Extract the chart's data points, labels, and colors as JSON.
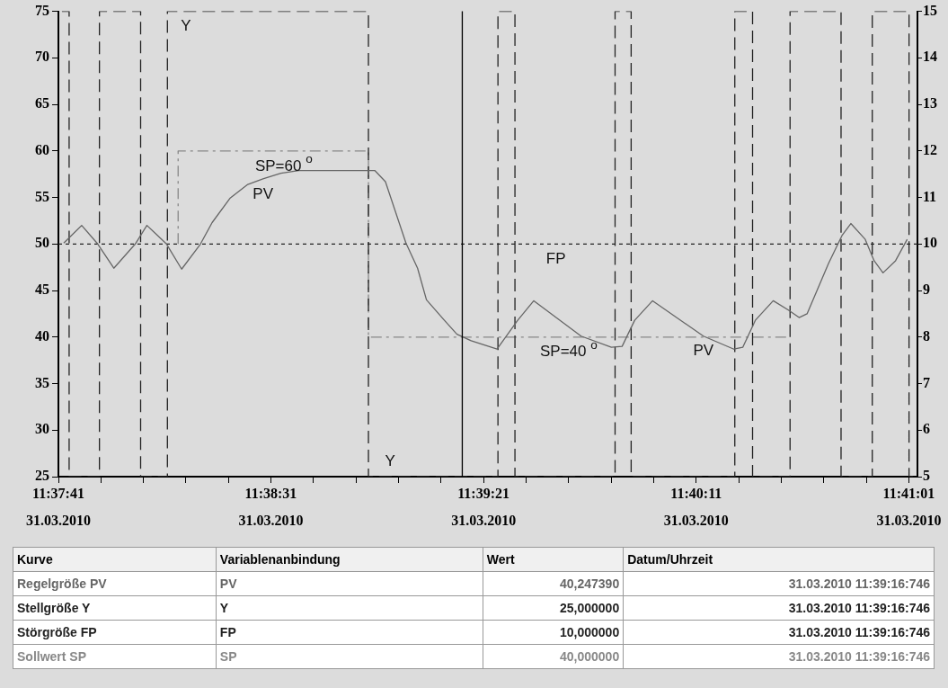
{
  "chart_data": {
    "type": "line",
    "xlim": [
      11.62806,
      11.68417
    ],
    "xticks": [
      {
        "value": 11.62806,
        "label": "11:37:41"
      },
      {
        "value": 11.63083,
        "label": null
      },
      {
        "value": 11.63361,
        "label": null
      },
      {
        "value": 11.63639,
        "label": null
      },
      {
        "value": 11.63917,
        "label": null
      },
      {
        "value": 11.64194,
        "label": "11:38:31"
      },
      {
        "value": 11.64472,
        "label": null
      },
      {
        "value": 11.6475,
        "label": null
      },
      {
        "value": 11.65028,
        "label": null
      },
      {
        "value": 11.65306,
        "label": null
      },
      {
        "value": 11.65583,
        "label": "11:39:21"
      },
      {
        "value": 11.65861,
        "label": null
      },
      {
        "value": 11.66139,
        "label": null
      },
      {
        "value": 11.66417,
        "label": null
      },
      {
        "value": 11.66694,
        "label": null
      },
      {
        "value": 11.66972,
        "label": "11:40:11"
      },
      {
        "value": 11.6725,
        "label": null
      },
      {
        "value": 11.67528,
        "label": null
      },
      {
        "value": 11.67806,
        "label": null
      },
      {
        "value": 11.68083,
        "label": null
      },
      {
        "value": 11.68361,
        "label": "11:41:01"
      }
    ],
    "ylim": [
      25,
      75
    ],
    "yticks": [
      25,
      30,
      35,
      40,
      45,
      50,
      55,
      60,
      65,
      70,
      75
    ],
    "y2lim": [
      5,
      15
    ],
    "y2ticks": [
      5,
      6,
      7,
      8,
      9,
      10,
      11,
      12,
      13,
      14,
      15
    ],
    "grid": false,
    "marker": "none",
    "series": [
      {
        "color": "#666666",
        "line_style": "solid",
        "x": [
          11.62841,
          11.62958,
          11.63063,
          11.63168,
          11.63308,
          11.63384,
          11.63512,
          11.63611,
          11.63734,
          11.6381,
          11.63926,
          11.64043,
          11.64142,
          11.64259,
          11.64376,
          11.64872,
          11.64942,
          11.65076,
          11.65152,
          11.6521,
          11.65327,
          11.65409,
          11.65502,
          11.65671,
          11.65806,
          11.65911,
          11.6622,
          11.66418,
          11.66488,
          11.6657,
          11.66687,
          11.67019,
          11.67218,
          11.67276,
          11.67358,
          11.67475,
          11.67574,
          11.67644,
          11.67696,
          11.67836,
          11.67924,
          11.67982,
          11.68076,
          11.68134,
          11.68192,
          11.68274,
          11.6835
        ],
        "values": [
          50.1,
          52,
          50,
          47.4,
          50,
          52,
          50,
          47.3,
          50,
          52.3,
          54.9,
          56.4,
          57,
          57.6,
          57.9,
          57.9,
          56.7,
          50.1,
          47.4,
          44,
          41.8,
          40.3,
          39.6,
          38.7,
          41.8,
          43.9,
          40.1,
          38.9,
          39,
          41.8,
          43.9,
          40.1,
          38.7,
          38.9,
          41.8,
          43.9,
          42.9,
          42.1,
          42.5,
          47.9,
          50.9,
          52.2,
          50.5,
          48.2,
          46.9,
          48.2,
          50.5
        ]
      },
      {
        "color": "#222222",
        "line_style": "dashed",
        "x": [
          11.62829,
          11.62876,
          11.62876,
          11.63074,
          11.63074,
          11.63343,
          11.63343,
          11.63518,
          11.63518,
          11.64831,
          11.64831,
          11.65677,
          11.65677,
          11.65788,
          11.65788,
          11.66442,
          11.66442,
          11.66547,
          11.66547,
          11.67224,
          11.67224,
          11.6734,
          11.6734,
          11.67585,
          11.67585,
          11.67918,
          11.67918,
          11.68122,
          11.68122,
          11.68362,
          11.68362,
          11.68391
        ],
        "values": [
          75,
          75,
          25,
          25,
          75,
          75,
          25,
          25,
          75,
          75,
          25,
          25,
          75,
          75,
          25,
          25,
          75,
          75,
          25,
          25,
          75,
          75,
          25,
          25,
          75,
          75,
          25,
          25,
          75,
          75,
          25,
          25
        ]
      },
      {
        "color": "#222222",
        "line_style": "dotted",
        "axis": "y2",
        "x": [
          11.62806,
          11.68417
        ],
        "values": [
          10,
          10
        ]
      },
      {
        "color": "#888888",
        "line_style": "dashdot",
        "x": [
          11.63588,
          11.63588,
          11.64831,
          11.64831,
          11.67585
        ],
        "values": [
          50,
          60,
          60,
          40,
          40
        ]
      }
    ],
    "ref_lines": [
      {
        "axis": "x",
        "value": 11.65444,
        "color": "#000000",
        "line_style": "solid"
      }
    ],
    "annotations": [
      {
        "text": "Y",
        "x": 11.63639,
        "y": 75
      },
      {
        "text": "SP=60 $^{o}$",
        "x": 11.64278,
        "y": 60
      },
      {
        "text": "PV",
        "x": 11.64142,
        "y": 57
      },
      {
        "text": "FP",
        "x": 11.66056,
        "y": 50
      },
      {
        "text": "PV",
        "x": 11.67019,
        "y": 40.1
      },
      {
        "text": "SP=40 $^{o}$",
        "x": 11.66139,
        "y": 40
      },
      {
        "text": "Y",
        "x": 11.64973,
        "y": 25
      },
      "31.03.2010",
      "31.03.2010",
      "31.03.2010",
      "31.03.2010",
      "31.03.2010",
      "Kurve",
      "Variablenanbindung",
      "Wert",
      "Datum/Uhrzeit",
      "Regelgröße PV",
      "PV",
      "40,247390",
      "31.03.2010 11:39:16:746",
      "Stellgröße Y",
      "Y",
      "25,000000",
      "31.03.2010 11:39:16:746",
      "Störgröße FP",
      "FP",
      "10,000000",
      "31.03.2010 11:39:16:746",
      "Sollwert SP",
      "SP",
      "40,000000",
      "31.03.2010 11:39:16:746"
    ]
  }
}
